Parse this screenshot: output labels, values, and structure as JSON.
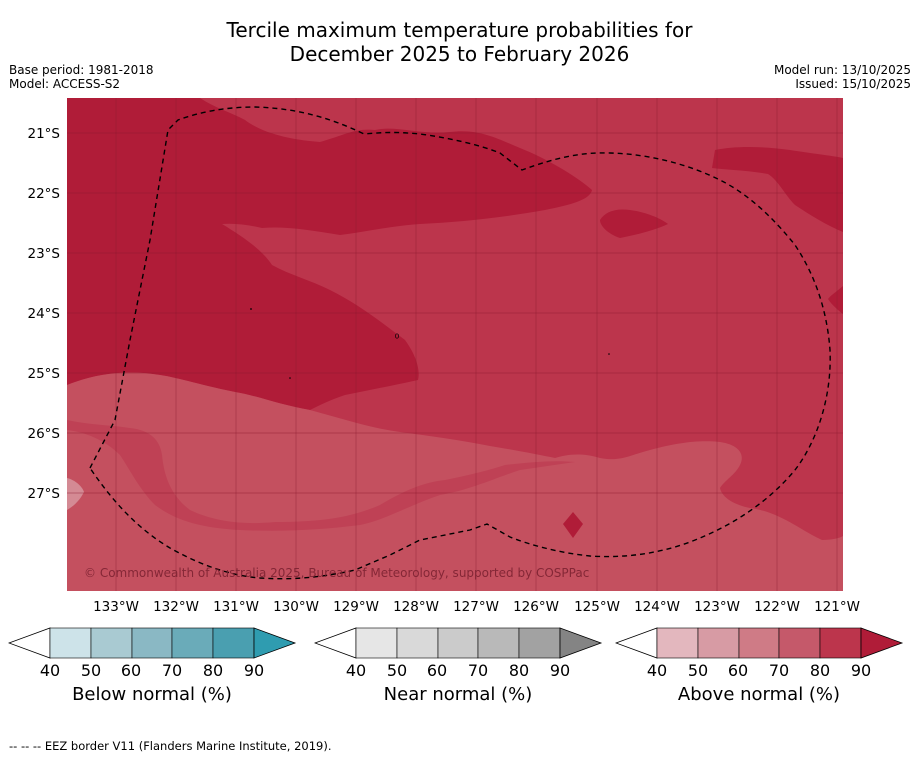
{
  "header": {
    "title_line1": "Tercile maximum temperature probabilities for",
    "title_line2": "December 2025 to February 2026",
    "base_period": "Base period: 1981-2018",
    "model": "Model: ACCESS-S2",
    "model_run": "Model run: 13/10/2025",
    "issued": "Issued: 15/10/2025"
  },
  "map": {
    "lat_labels": [
      "21°S",
      "22°S",
      "23°S",
      "24°S",
      "25°S",
      "26°S",
      "27°S"
    ],
    "lon_labels": [
      "133°W",
      "132°W",
      "131°W",
      "130°W",
      "129°W",
      "128°W",
      "127°W",
      "126°W",
      "125°W",
      "124°W",
      "123°W",
      "122°W",
      "121°W"
    ],
    "copyright": "© Commonwealth of Australia 2025, Bureau of Meteorology, supported by COSPPac",
    "colors": {
      "above_80_90": "#b01c38",
      "above_70_80": "#bc354c",
      "above_60_70": "#c4505f",
      "above_50_60": "#d48a94"
    }
  },
  "colorbars": [
    {
      "name": "below",
      "label": "Below normal (%)",
      "ticks": [
        "40",
        "50",
        "60",
        "70",
        "80",
        "90"
      ],
      "colors": [
        "#cde3e9",
        "#a9cad2",
        "#8ab8c4",
        "#6aabb9",
        "#4a9fb0"
      ],
      "arrow_color": "#2f9cb0"
    },
    {
      "name": "near",
      "label": "Near normal (%)",
      "ticks": [
        "40",
        "50",
        "60",
        "70",
        "80",
        "90"
      ],
      "colors": [
        "#e6e6e6",
        "#d9d9d9",
        "#cbcbcb",
        "#b9b9b9",
        "#a2a2a2"
      ],
      "arrow_color": "#848484"
    },
    {
      "name": "above",
      "label": "Above normal (%)",
      "ticks": [
        "40",
        "50",
        "60",
        "70",
        "80",
        "90"
      ],
      "colors": [
        "#e3b7be",
        "#d79ba4",
        "#cf7b86",
        "#c5596a",
        "#bc354c"
      ],
      "arrow_color": "#b01c38"
    }
  ],
  "footer": {
    "legend_line": "--  --  -- EEZ border V11 (Flanders Marine Institute, 2019)."
  }
}
